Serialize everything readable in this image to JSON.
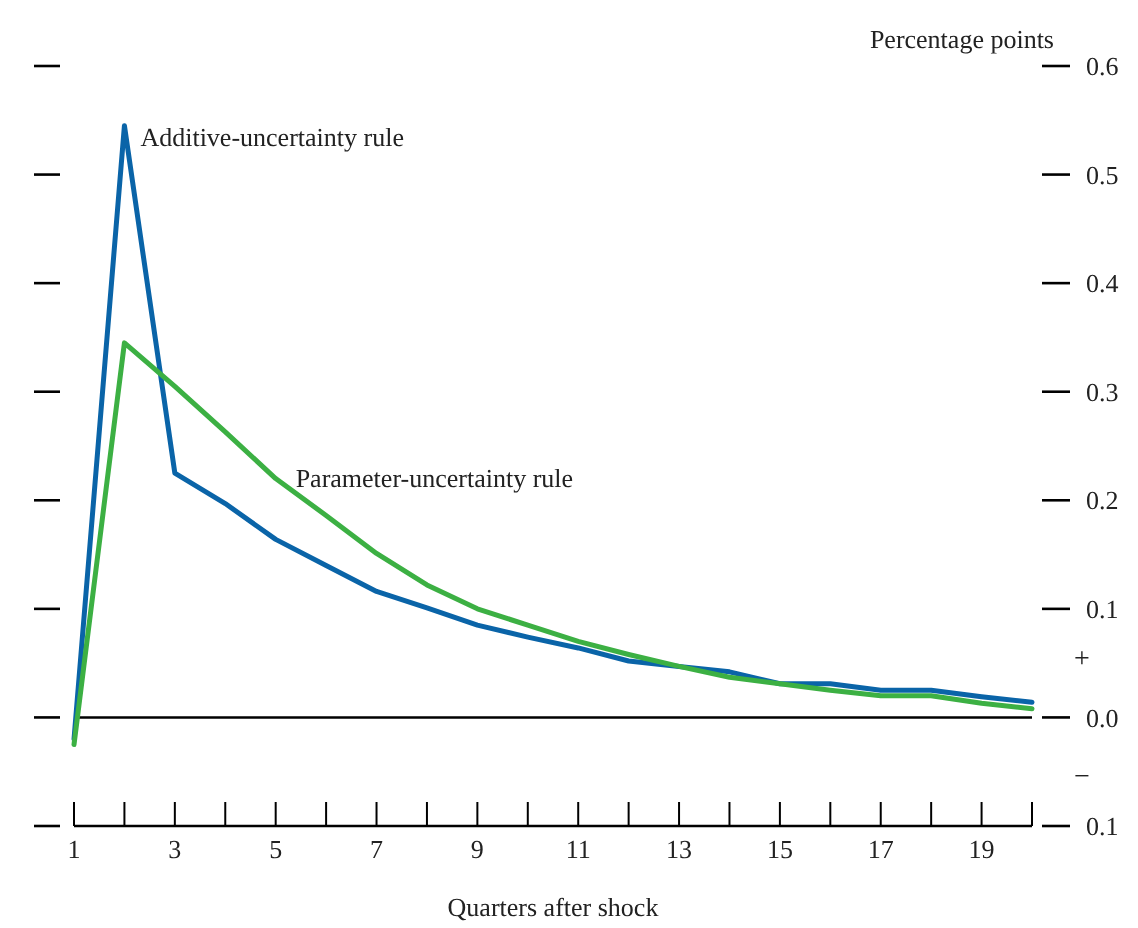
{
  "chart_data": {
    "type": "line",
    "xlabel": "Quarters after shock",
    "ylabel": "Percentage points",
    "x": [
      1,
      2,
      3,
      4,
      5,
      6,
      7,
      8,
      9,
      10,
      11,
      12,
      13,
      14,
      15,
      16,
      17,
      18,
      19,
      20
    ],
    "series": [
      {
        "name": "Additive-uncertainty rule",
        "color": "#0a64a8",
        "values": [
          -0.02,
          0.545,
          0.225,
          0.197,
          0.164,
          0.14,
          0.116,
          0.101,
          0.085,
          0.074,
          0.064,
          0.052,
          0.047,
          0.042,
          0.031,
          0.031,
          0.025,
          0.025,
          0.019,
          0.014
        ]
      },
      {
        "name": "Parameter-uncertainty rule",
        "color": "#3cb043",
        "values": [
          -0.025,
          0.345,
          0.305,
          0.263,
          0.22,
          0.186,
          0.151,
          0.122,
          0.1,
          0.085,
          0.07,
          0.058,
          0.047,
          0.037,
          0.031,
          0.025,
          0.02,
          0.02,
          0.013,
          0.008
        ]
      }
    ],
    "xlim": [
      1,
      20
    ],
    "xticks": [
      1,
      {
        "value": 2,
        "label": null
      },
      3,
      {
        "value": 4,
        "label": null
      },
      5,
      {
        "value": 6,
        "label": null
      },
      7,
      {
        "value": 8,
        "label": null
      },
      9,
      {
        "value": 10,
        "label": null
      },
      11,
      {
        "value": 12,
        "label": null
      },
      13,
      {
        "value": 14,
        "label": null
      },
      15,
      {
        "value": 16,
        "label": null
      },
      17,
      {
        "value": 18,
        "label": null
      },
      19,
      {
        "value": 20,
        "label": null
      }
    ],
    "ylim": [
      -0.1,
      0.6
    ],
    "yticks": [
      {
        "value": -0.1,
        "label": "0.1"
      },
      {
        "value": 0,
        "label": "0.0"
      },
      0.1,
      0.2,
      0.3,
      0.4,
      0.5,
      0.6
    ],
    "ref_lines": [
      {
        "axis": "y",
        "value": 0
      }
    ],
    "annotations": [
      "+",
      "−"
    ],
    "grid": false,
    "marker": "none",
    "line_style": "solid"
  }
}
